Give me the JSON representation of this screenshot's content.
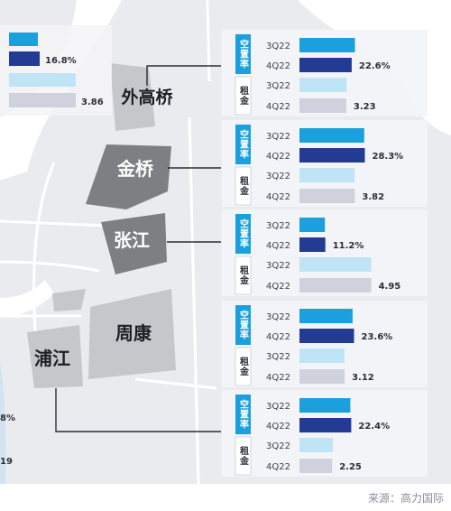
{
  "source": "来源：高力国际",
  "colors": {
    "vacancy_q3": "#1aa0dc",
    "vacancy_q4": "#233b93",
    "rent_q3": "#bfe4f6",
    "rent_q4": "#cfd2dc",
    "tag_bg": "#1aa0dc",
    "map_land": "#e9ebef",
    "map_water": "#ffffff",
    "district_dark": "#7e7f83",
    "district_light": "#c6c7ca"
  },
  "districts": [
    {
      "name": "外高桥"
    },
    {
      "name": "金桥"
    },
    {
      "name": "张江"
    },
    {
      "name": "周康"
    },
    {
      "name": "浦江"
    }
  ],
  "chart_data": {
    "type": "bar",
    "title": "",
    "metrics": [
      {
        "key": "vacancy",
        "label": "空置率"
      },
      {
        "key": "rent",
        "label": "租金"
      }
    ],
    "periods": [
      "3Q22",
      "4Q22"
    ],
    "panels": [
      {
        "district": "外高桥",
        "vacancy": {
          "3Q22": 24.0,
          "4Q22": 22.6,
          "label": "22.6%"
        },
        "rent": {
          "3Q22": 3.25,
          "4Q22": 3.23,
          "label": "3.23"
        }
      },
      {
        "district": "金桥",
        "vacancy": {
          "3Q22": 28.0,
          "4Q22": 28.3,
          "label": "28.3%"
        },
        "rent": {
          "3Q22": 3.8,
          "4Q22": 3.82,
          "label": "3.82"
        }
      },
      {
        "district": "张江",
        "vacancy": {
          "3Q22": 11.0,
          "4Q22": 11.2,
          "label": "11.2%"
        },
        "rent": {
          "3Q22": 4.95,
          "4Q22": 4.95,
          "label": "4.95"
        }
      },
      {
        "district": "周康",
        "vacancy": {
          "3Q22": 23.0,
          "4Q22": 23.6,
          "label": "23.6%"
        },
        "rent": {
          "3Q22": 3.1,
          "4Q22": 3.12,
          "label": "3.12"
        }
      },
      {
        "district": "浦江",
        "vacancy": {
          "3Q22": 22.0,
          "4Q22": 22.4,
          "label": "22.4%"
        },
        "rent": {
          "3Q22": 2.3,
          "4Q22": 2.25,
          "label": "2.25"
        }
      }
    ],
    "left_partial": {
      "vacancy_label": "16.8%",
      "rent_label": "3.86",
      "bottom_labels": [
        "8%",
        "19"
      ]
    }
  }
}
